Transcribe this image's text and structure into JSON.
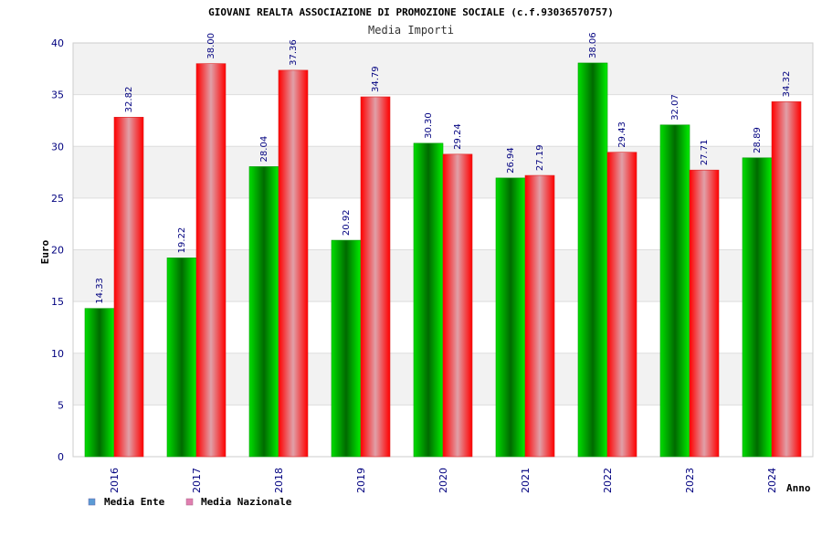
{
  "chart_data": {
    "type": "bar",
    "title": "GIOVANI REALTA ASSOCIAZIONE DI PROMOZIONE SOCIALE (c.f.93036570757)",
    "subtitle": "Media Importi",
    "xlabel": "Anno",
    "ylabel": "Euro",
    "ylim": [
      0,
      40
    ],
    "yticks": [
      "0",
      "5",
      "10",
      "15",
      "20",
      "25",
      "30",
      "35",
      "40"
    ],
    "grid": true,
    "legend_position": "bottom-left",
    "categories": [
      "2016",
      "2017",
      "2018",
      "2019",
      "2020",
      "2021",
      "2022",
      "2023",
      "2024"
    ],
    "series": [
      {
        "name": "Media Ente",
        "color": "#00aa00",
        "legend_color": "#5b9bd5",
        "values": [
          14.33,
          19.22,
          28.04,
          20.92,
          30.3,
          26.94,
          38.06,
          32.07,
          28.89
        ],
        "labels": [
          "14.33",
          "19.22",
          "28.04",
          "20.92",
          "30.30",
          "26.94",
          "38.06",
          "32.07",
          "28.89"
        ]
      },
      {
        "name": "Media Nazionale",
        "color": "#ee1111",
        "legend_color": "#e07fb0",
        "values": [
          32.82,
          38.0,
          37.36,
          34.79,
          29.24,
          27.19,
          29.43,
          27.71,
          34.32
        ],
        "labels": [
          "32.82",
          "38.00",
          "37.36",
          "34.79",
          "29.24",
          "27.19",
          "29.43",
          "27.71",
          "34.32"
        ]
      }
    ]
  }
}
